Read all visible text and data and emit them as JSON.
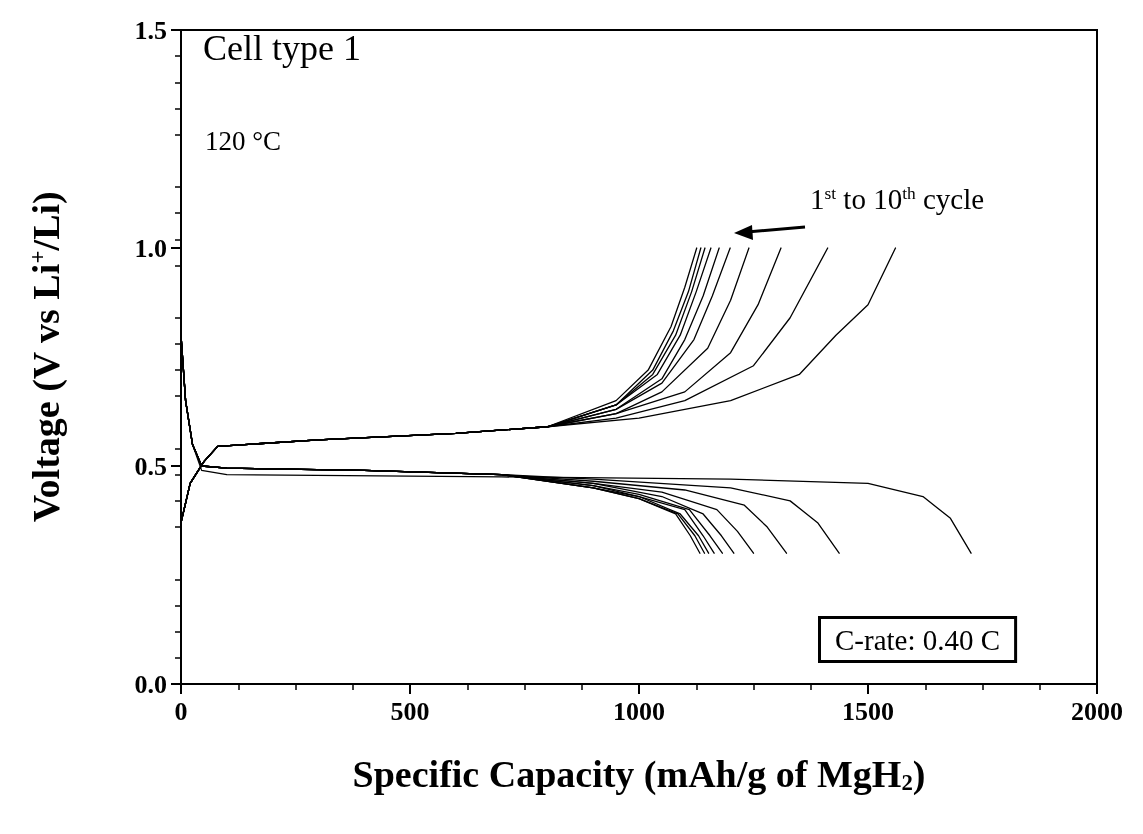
{
  "chart_data": {
    "type": "line",
    "xlabel": "Specific Capacity (mAh/g of MgH$_{2}$)",
    "ylabel": "Voltage (V vs Li$^{+}$/Li)",
    "annotations": [
      "Cell type 1",
      "120 °C",
      "1$^{st}$ to 10$^{th}$ cycle",
      "C-rate: 0.40 C"
    ],
    "xlim": [
      0,
      2000
    ],
    "xticks": [
      0,
      500,
      1000,
      1500,
      2000
    ],
    "ylim": [
      0,
      1.5
    ],
    "yticks": [
      {
        "value": 0,
        "label": "0.0"
      },
      0.5,
      {
        "value": 1,
        "label": "1.0"
      },
      1.5
    ],
    "grid": false,
    "marker": "none",
    "line_style": "solid",
    "series": [
      {
        "color": "#000000",
        "x": [
          0,
          10,
          25,
          45,
          100,
          700,
          1200,
          1500,
          1620,
          1680,
          1725
        ],
        "values": [
          0.8,
          0.65,
          0.55,
          0.49,
          0.48,
          0.475,
          0.47,
          0.46,
          0.43,
          0.38,
          0.3
        ]
      },
      {
        "color": "#000000",
        "x": [
          0,
          10,
          25,
          45,
          100,
          400,
          700,
          900,
          1200,
          1330,
          1390,
          1437
        ],
        "values": [
          0.8,
          0.65,
          0.55,
          0.5,
          0.495,
          0.49,
          0.48,
          0.47,
          0.45,
          0.42,
          0.37,
          0.3
        ]
      },
      {
        "color": "#000000",
        "x": [
          0,
          10,
          25,
          45,
          100,
          400,
          700,
          900,
          1100,
          1230,
          1280,
          1322
        ],
        "values": [
          0.8,
          0.65,
          0.55,
          0.5,
          0.495,
          0.49,
          0.48,
          0.465,
          0.445,
          0.41,
          0.36,
          0.3
        ]
      },
      {
        "color": "#000000",
        "x": [
          0,
          10,
          25,
          45,
          100,
          400,
          700,
          900,
          1050,
          1170,
          1215,
          1250
        ],
        "values": [
          0.8,
          0.65,
          0.55,
          0.5,
          0.495,
          0.49,
          0.48,
          0.46,
          0.44,
          0.4,
          0.35,
          0.3
        ]
      },
      {
        "color": "#000000",
        "x": [
          0,
          10,
          25,
          45,
          100,
          400,
          700,
          900,
          1050,
          1140,
          1180,
          1207
        ],
        "values": [
          0.8,
          0.65,
          0.55,
          0.5,
          0.495,
          0.49,
          0.48,
          0.46,
          0.43,
          0.39,
          0.34,
          0.3
        ]
      },
      {
        "color": "#000000",
        "x": [
          0,
          10,
          25,
          45,
          100,
          400,
          700,
          900,
          1000,
          1110,
          1155,
          1182
        ],
        "values": [
          0.8,
          0.65,
          0.55,
          0.5,
          0.495,
          0.49,
          0.48,
          0.455,
          0.435,
          0.4,
          0.34,
          0.3
        ]
      },
      {
        "color": "#000000",
        "x": [
          0,
          10,
          25,
          45,
          100,
          400,
          700,
          900,
          1000,
          1100,
          1140,
          1164
        ],
        "values": [
          0.8,
          0.65,
          0.55,
          0.5,
          0.495,
          0.49,
          0.48,
          0.455,
          0.43,
          0.4,
          0.34,
          0.3
        ]
      },
      {
        "color": "#000000",
        "x": [
          0,
          10,
          25,
          45,
          100,
          400,
          700,
          900,
          1000,
          1090,
          1130,
          1152
        ],
        "values": [
          0.8,
          0.65,
          0.55,
          0.5,
          0.495,
          0.49,
          0.48,
          0.45,
          0.43,
          0.39,
          0.34,
          0.3
        ]
      },
      {
        "color": "#000000",
        "x": [
          0,
          10,
          25,
          45,
          100,
          400,
          700,
          900,
          1000,
          1085,
          1122,
          1143
        ],
        "values": [
          0.8,
          0.65,
          0.55,
          0.5,
          0.495,
          0.49,
          0.48,
          0.45,
          0.425,
          0.39,
          0.34,
          0.3
        ]
      },
      {
        "color": "#000000",
        "x": [
          0,
          10,
          25,
          45,
          100,
          400,
          700,
          900,
          1000,
          1080,
          1112,
          1133
        ],
        "values": [
          0.8,
          0.65,
          0.55,
          0.5,
          0.495,
          0.49,
          0.48,
          0.45,
          0.425,
          0.39,
          0.34,
          0.3
        ]
      },
      {
        "color": "#000000",
        "x": [
          0,
          20,
          50,
          80,
          300,
          600,
          800,
          1000,
          1200,
          1350,
          1430,
          1500,
          1560
        ],
        "values": [
          0.37,
          0.46,
          0.51,
          0.545,
          0.56,
          0.575,
          0.59,
          0.61,
          0.65,
          0.71,
          0.8,
          0.87,
          1.0
        ]
      },
      {
        "color": "#000000",
        "x": [
          0,
          20,
          50,
          80,
          300,
          600,
          800,
          950,
          1100,
          1250,
          1330,
          1412
        ],
        "values": [
          0.37,
          0.46,
          0.51,
          0.545,
          0.56,
          0.575,
          0.59,
          0.61,
          0.65,
          0.73,
          0.84,
          1.0
        ]
      },
      {
        "color": "#000000",
        "x": [
          0,
          20,
          50,
          80,
          300,
          600,
          800,
          950,
          1100,
          1200,
          1260,
          1310
        ],
        "values": [
          0.37,
          0.46,
          0.51,
          0.545,
          0.56,
          0.575,
          0.59,
          0.62,
          0.67,
          0.76,
          0.87,
          1.0
        ]
      },
      {
        "color": "#000000",
        "x": [
          0,
          20,
          50,
          80,
          300,
          600,
          800,
          950,
          1050,
          1150,
          1200,
          1240
        ],
        "values": [
          0.37,
          0.46,
          0.51,
          0.545,
          0.56,
          0.575,
          0.59,
          0.62,
          0.67,
          0.77,
          0.88,
          1.0
        ]
      },
      {
        "color": "#000000",
        "x": [
          0,
          20,
          50,
          80,
          300,
          600,
          800,
          950,
          1050,
          1120,
          1160,
          1199
        ],
        "values": [
          0.37,
          0.46,
          0.51,
          0.545,
          0.56,
          0.575,
          0.59,
          0.63,
          0.69,
          0.79,
          0.89,
          1.0
        ]
      },
      {
        "color": "#000000",
        "x": [
          0,
          20,
          50,
          80,
          300,
          600,
          800,
          950,
          1050,
          1100,
          1140,
          1175
        ],
        "values": [
          0.37,
          0.46,
          0.51,
          0.545,
          0.56,
          0.575,
          0.59,
          0.63,
          0.7,
          0.79,
          0.89,
          1.0
        ]
      },
      {
        "color": "#000000",
        "x": [
          0,
          20,
          50,
          80,
          300,
          600,
          800,
          950,
          1040,
          1090,
          1125,
          1157
        ],
        "values": [
          0.37,
          0.46,
          0.51,
          0.545,
          0.56,
          0.575,
          0.59,
          0.64,
          0.71,
          0.8,
          0.9,
          1.0
        ]
      },
      {
        "color": "#000000",
        "x": [
          0,
          20,
          50,
          80,
          300,
          600,
          800,
          950,
          1030,
          1080,
          1115,
          1144
        ],
        "values": [
          0.37,
          0.46,
          0.51,
          0.545,
          0.56,
          0.575,
          0.59,
          0.64,
          0.71,
          0.8,
          0.9,
          1.0
        ]
      },
      {
        "color": "#000000",
        "x": [
          0,
          20,
          50,
          80,
          300,
          600,
          800,
          950,
          1030,
          1075,
          1108,
          1135
        ],
        "values": [
          0.37,
          0.46,
          0.51,
          0.545,
          0.56,
          0.575,
          0.59,
          0.64,
          0.72,
          0.81,
          0.9,
          1.0
        ]
      },
      {
        "color": "#000000",
        "x": [
          0,
          20,
          50,
          80,
          300,
          600,
          800,
          950,
          1020,
          1070,
          1100,
          1126
        ],
        "values": [
          0.37,
          0.46,
          0.51,
          0.545,
          0.56,
          0.575,
          0.59,
          0.65,
          0.72,
          0.82,
          0.91,
          1.0
        ]
      }
    ]
  }
}
